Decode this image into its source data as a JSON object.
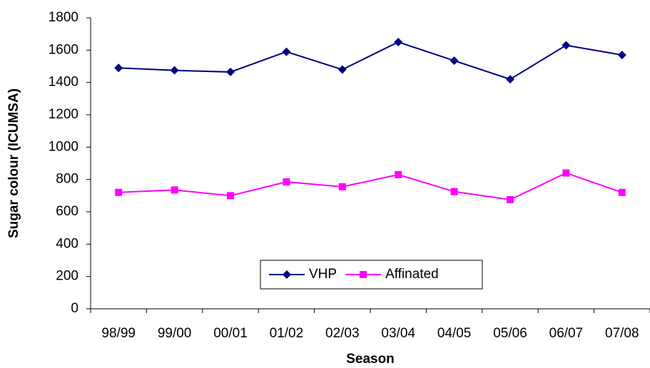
{
  "chart_data": {
    "type": "line",
    "x_label": "Season",
    "y_label": "Sugar colour (ICUMSA)",
    "categories": [
      "98/99",
      "99/00",
      "00/01",
      "01/02",
      "02/03",
      "03/04",
      "04/05",
      "05/06",
      "06/07",
      "07/08"
    ],
    "series": [
      {
        "name": "VHP",
        "color": "#000080",
        "marker": "diamond",
        "values": [
          1490,
          1475,
          1465,
          1590,
          1480,
          1650,
          1535,
          1420,
          1630,
          1570
        ]
      },
      {
        "name": "Affinated",
        "color": "#ff00ff",
        "marker": "square",
        "values": [
          720,
          735,
          700,
          785,
          755,
          830,
          725,
          675,
          840,
          720
        ]
      }
    ],
    "ylim": [
      0,
      1800
    ],
    "yticks": [
      0,
      200,
      400,
      600,
      800,
      1000,
      1200,
      1400,
      1600,
      1800
    ],
    "grid": false,
    "legend_position": "lower center"
  }
}
